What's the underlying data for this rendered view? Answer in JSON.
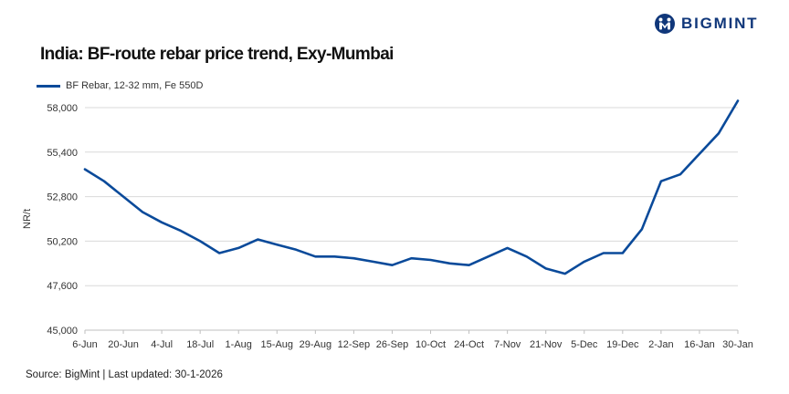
{
  "brand": {
    "name": "BIGMINT",
    "logo_icon": "bigmint-logo-icon"
  },
  "chart_data": {
    "type": "line",
    "title": "India: BF-route rebar price trend, Exy-Mumbai",
    "xlabel": "",
    "ylabel": "NR/t",
    "ylim": [
      45000,
      58000
    ],
    "yticks": [
      45000,
      47600,
      50200,
      52800,
      55400,
      58000
    ],
    "ytick_labels": [
      "45,000",
      "47,600",
      "50,200",
      "52,800",
      "55,400",
      "58,000"
    ],
    "x_ticks": [
      "6-Jun",
      "20-Jun",
      "4-Jul",
      "18-Jul",
      "1-Aug",
      "15-Aug",
      "29-Aug",
      "12-Sep",
      "26-Sep",
      "10-Oct",
      "24-Oct",
      "7-Nov",
      "21-Nov",
      "5-Dec",
      "19-Dec",
      "2-Jan",
      "16-Jan",
      "30-Jan"
    ],
    "grid": "horizontal",
    "legend_position": "top-left",
    "series": [
      {
        "name": "BF Rebar, 12-32 mm, Fe 550D",
        "color": "#0a4a9a",
        "values": [
          54400,
          53700,
          52800,
          51900,
          51300,
          50800,
          50200,
          49500,
          49800,
          50300,
          50000,
          49700,
          49300,
          49300,
          49200,
          49000,
          48800,
          49200,
          49100,
          48900,
          48800,
          49300,
          49800,
          49300,
          48600,
          48300,
          49000,
          49500,
          49500,
          50900,
          53700,
          54100,
          55300,
          56500,
          58400
        ]
      }
    ]
  },
  "source_text": "Source: BigMint | Last updated: 30-1-2026"
}
